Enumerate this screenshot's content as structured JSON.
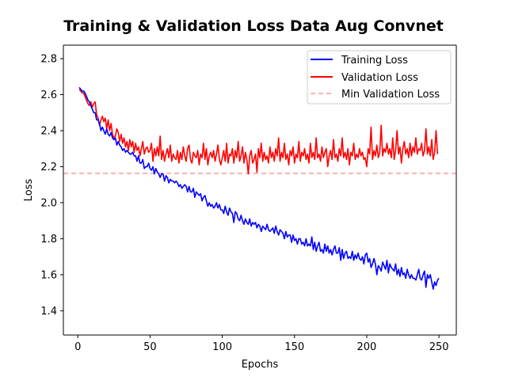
{
  "chart_data": {
    "type": "line",
    "title": "Training & Validation Loss Data Aug Convnet",
    "xlabel": "Epochs",
    "ylabel": "Loss",
    "xlim": [
      -10,
      262
    ],
    "ylim": [
      1.265,
      2.875
    ],
    "x_ticks": [
      0,
      50,
      100,
      150,
      200,
      250
    ],
    "y_ticks": [
      1.4,
      1.6,
      1.8,
      2.0,
      2.2,
      2.4,
      2.6,
      2.8
    ],
    "x_tick_labels": [
      "0",
      "50",
      "100",
      "150",
      "200",
      "250"
    ],
    "y_tick_labels": [
      "1.4",
      "1.6",
      "1.8",
      "2.0",
      "2.2",
      "2.4",
      "2.6",
      "2.8"
    ],
    "grid": false,
    "legend_position": "top-right",
    "x_start": 1,
    "x_step": 1,
    "series": [
      {
        "name": "Training Loss",
        "color": "#0000ff",
        "style": "solid",
        "values": [
          2.64,
          2.63,
          2.62,
          2.62,
          2.61,
          2.59,
          2.57,
          2.56,
          2.54,
          2.52,
          2.5,
          2.5,
          2.46,
          2.46,
          2.44,
          2.4,
          2.42,
          2.4,
          2.38,
          2.41,
          2.38,
          2.37,
          2.39,
          2.36,
          2.35,
          2.36,
          2.32,
          2.34,
          2.32,
          2.31,
          2.29,
          2.3,
          2.28,
          2.29,
          2.28,
          2.27,
          2.27,
          2.28,
          2.26,
          2.26,
          2.23,
          2.26,
          2.22,
          2.22,
          2.24,
          2.19,
          2.2,
          2.2,
          2.22,
          2.19,
          2.18,
          2.2,
          2.16,
          2.19,
          2.17,
          2.16,
          2.14,
          2.16,
          2.16,
          2.12,
          2.15,
          2.14,
          2.11,
          2.13,
          2.12,
          2.12,
          2.11,
          2.12,
          2.11,
          2.09,
          2.1,
          2.08,
          2.09,
          2.1,
          2.09,
          2.06,
          2.09,
          2.06,
          2.06,
          2.08,
          2.03,
          2.06,
          2.05,
          2.04,
          2.05,
          2.01,
          2.03,
          2.04,
          2.01,
          1.98,
          2.0,
          1.98,
          1.99,
          1.97,
          1.98,
          2.0,
          1.97,
          1.99,
          1.96,
          1.96,
          1.94,
          1.98,
          1.95,
          1.93,
          1.97,
          1.95,
          1.94,
          1.89,
          1.95,
          1.94,
          1.91,
          1.9,
          1.93,
          1.9,
          1.88,
          1.91,
          1.89,
          1.88,
          1.91,
          1.87,
          1.89,
          1.88,
          1.89,
          1.86,
          1.88,
          1.87,
          1.84,
          1.87,
          1.86,
          1.85,
          1.88,
          1.85,
          1.84,
          1.85,
          1.86,
          1.83,
          1.87,
          1.84,
          1.82,
          1.85,
          1.84,
          1.83,
          1.8,
          1.84,
          1.81,
          1.82,
          1.82,
          1.78,
          1.82,
          1.79,
          1.8,
          1.77,
          1.8,
          1.8,
          1.77,
          1.78,
          1.76,
          1.8,
          1.76,
          1.77,
          1.76,
          1.81,
          1.74,
          1.78,
          1.73,
          1.76,
          1.78,
          1.73,
          1.74,
          1.72,
          1.77,
          1.73,
          1.76,
          1.72,
          1.74,
          1.71,
          1.74,
          1.76,
          1.72,
          1.72,
          1.75,
          1.68,
          1.74,
          1.69,
          1.72,
          1.73,
          1.69,
          1.7,
          1.69,
          1.73,
          1.68,
          1.71,
          1.69,
          1.72,
          1.69,
          1.68,
          1.7,
          1.66,
          1.71,
          1.72,
          1.67,
          1.69,
          1.64,
          1.66,
          1.69,
          1.66,
          1.6,
          1.65,
          1.64,
          1.62,
          1.67,
          1.65,
          1.63,
          1.68,
          1.61,
          1.66,
          1.64,
          1.63,
          1.62,
          1.66,
          1.6,
          1.63,
          1.59,
          1.64,
          1.6,
          1.61,
          1.58,
          1.63,
          1.6,
          1.58,
          1.6,
          1.58,
          1.58,
          1.57,
          1.6,
          1.63,
          1.58,
          1.57,
          1.6,
          1.62,
          1.53,
          1.6,
          1.58,
          1.6,
          1.56,
          1.52,
          1.56,
          1.54,
          1.57,
          1.58
        ]
      },
      {
        "name": "Validation Loss",
        "color": "#ff0000",
        "style": "solid",
        "values": [
          2.63,
          2.62,
          2.61,
          2.61,
          2.59,
          2.57,
          2.55,
          2.54,
          2.56,
          2.53,
          2.55,
          2.56,
          2.49,
          2.47,
          2.43,
          2.46,
          2.48,
          2.45,
          2.47,
          2.41,
          2.46,
          2.4,
          2.44,
          2.38,
          2.36,
          2.37,
          2.41,
          2.39,
          2.34,
          2.38,
          2.33,
          2.36,
          2.31,
          2.34,
          2.29,
          2.35,
          2.31,
          2.34,
          2.28,
          2.33,
          2.29,
          2.31,
          2.26,
          2.3,
          2.34,
          2.27,
          2.3,
          2.31,
          2.28,
          2.29,
          2.33,
          2.23,
          2.3,
          2.26,
          2.31,
          2.26,
          2.37,
          2.24,
          2.29,
          2.23,
          2.27,
          2.3,
          2.25,
          2.32,
          2.23,
          2.27,
          2.25,
          2.24,
          2.29,
          2.22,
          2.28,
          2.24,
          2.31,
          2.26,
          2.23,
          2.3,
          2.32,
          2.24,
          2.22,
          2.28,
          2.26,
          2.25,
          2.29,
          2.21,
          2.27,
          2.25,
          2.33,
          2.24,
          2.3,
          2.21,
          2.26,
          2.28,
          2.25,
          2.29,
          2.23,
          2.27,
          2.32,
          2.24,
          2.21,
          2.25,
          2.29,
          2.23,
          2.33,
          2.22,
          2.27,
          2.26,
          2.3,
          2.22,
          2.29,
          2.25,
          2.34,
          2.23,
          2.26,
          2.31,
          2.22,
          2.28,
          2.24,
          2.16,
          2.26,
          2.29,
          2.22,
          2.24,
          2.27,
          2.17,
          2.3,
          2.25,
          2.33,
          2.23,
          2.28,
          2.24,
          2.26,
          2.22,
          2.31,
          2.25,
          2.28,
          2.23,
          2.3,
          2.26,
          2.36,
          2.23,
          2.28,
          2.25,
          2.33,
          2.24,
          2.27,
          2.21,
          2.29,
          2.26,
          2.31,
          2.22,
          2.27,
          2.25,
          2.34,
          2.23,
          2.28,
          2.26,
          2.3,
          2.24,
          2.27,
          2.22,
          2.33,
          2.25,
          2.28,
          2.24,
          2.36,
          2.25,
          2.27,
          2.23,
          2.31,
          2.25,
          2.28,
          2.3,
          2.2,
          2.26,
          2.29,
          2.24,
          2.35,
          2.25,
          2.27,
          2.23,
          2.3,
          2.26,
          2.36,
          2.25,
          2.28,
          2.24,
          2.3,
          2.21,
          2.28,
          2.26,
          2.33,
          2.24,
          2.27,
          2.25,
          2.3,
          2.26,
          2.28,
          2.24,
          2.25,
          2.2,
          2.3,
          2.27,
          2.42,
          2.24,
          2.29,
          2.26,
          2.32,
          2.25,
          2.28,
          2.43,
          2.26,
          2.3,
          2.28,
          2.33,
          2.27,
          2.3,
          2.25,
          2.36,
          2.24,
          2.29,
          2.4,
          2.27,
          2.31,
          2.22,
          2.3,
          2.34,
          2.27,
          2.3,
          2.25,
          2.33,
          2.26,
          2.31,
          2.28,
          2.36,
          2.27,
          2.3,
          2.29,
          2.33,
          2.26,
          2.29,
          2.41,
          2.27,
          2.31,
          2.26,
          2.35,
          2.24,
          2.28,
          2.4,
          2.27
        ]
      }
    ],
    "reference_lines": [
      {
        "name": "Min Validation Loss",
        "orientation": "horizontal",
        "value": 2.163,
        "color": "#ff9999",
        "style": "dashed"
      }
    ]
  }
}
